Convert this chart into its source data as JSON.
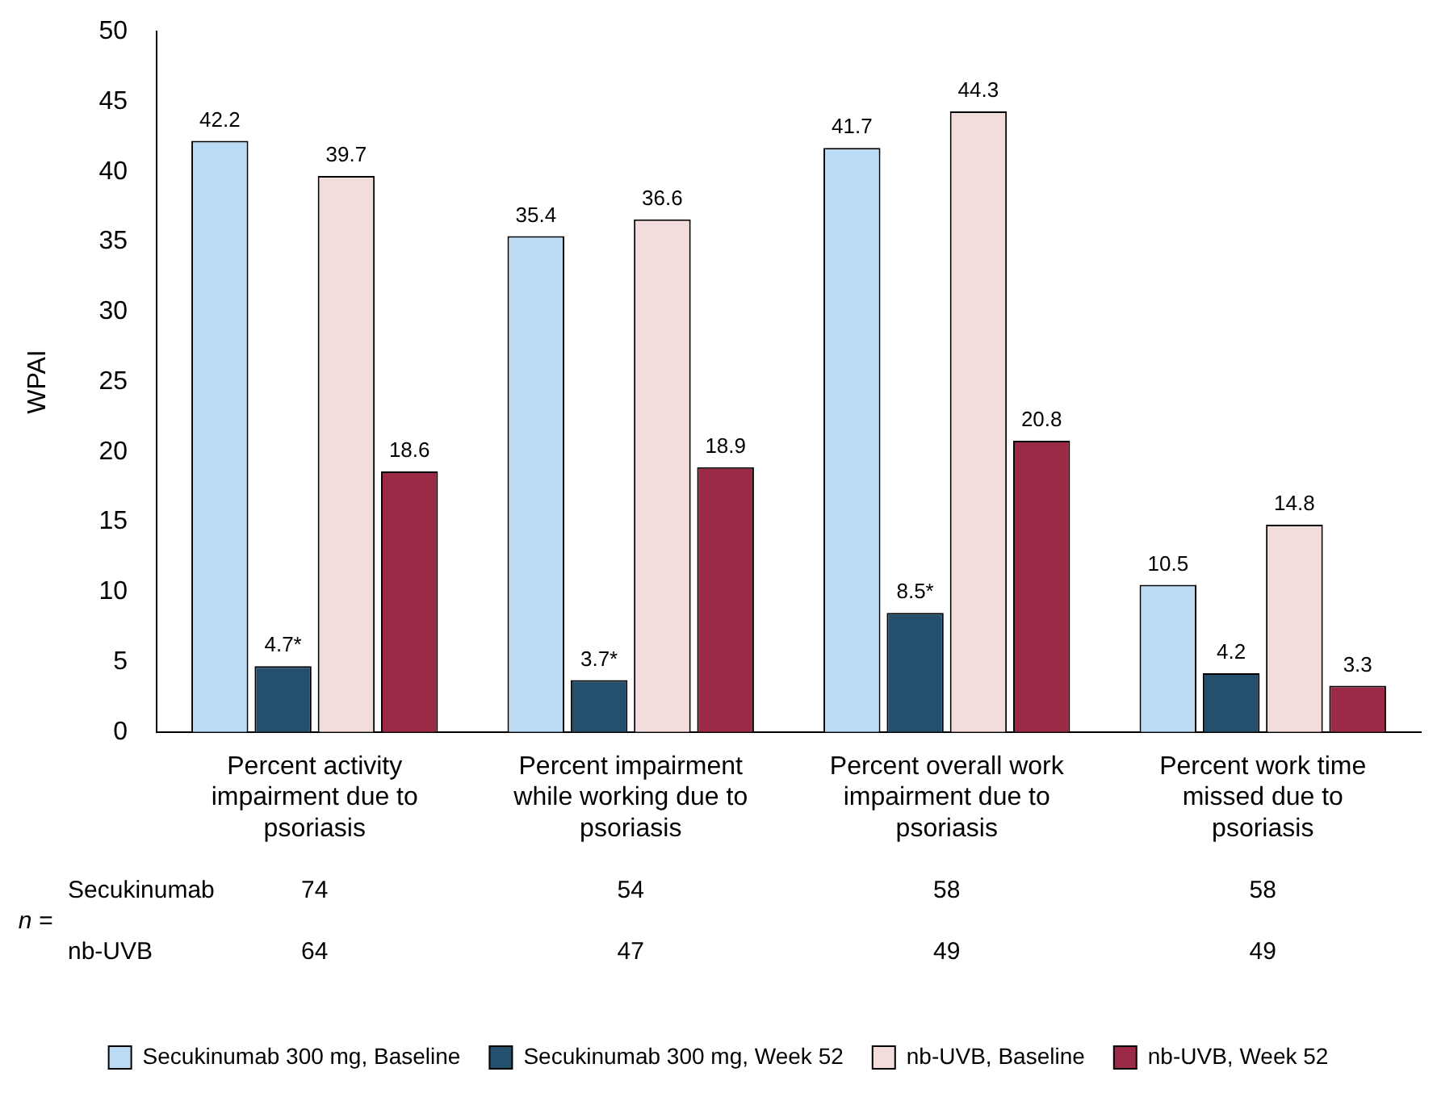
{
  "chart_data": {
    "type": "bar",
    "ylabel": "WPAI",
    "categories": [
      "Percent activity impairment due to psoriasis",
      "Percent impairment while working due to psoriasis",
      "Percent overall work impairment due to psoriasis",
      "Percent work time missed due to psoriasis"
    ],
    "series": [
      {
        "name": "Secukinumab 300 mg, Baseline",
        "color": "#bcdcf5",
        "values": [
          42.2,
          35.4,
          41.7,
          10.5
        ],
        "value_labels": [
          "42.2",
          "35.4",
          "41.7",
          "10.5"
        ]
      },
      {
        "name": "Secukinumab 300 mg, Week 52",
        "color": "#24506e",
        "values": [
          4.7,
          3.7,
          8.5,
          4.2
        ],
        "value_labels": [
          "4.7*",
          "3.7*",
          "8.5*",
          "4.2"
        ]
      },
      {
        "name": "nb-UVB, Baseline",
        "color": "#f2dcdc",
        "values": [
          39.7,
          36.6,
          44.3,
          14.8
        ],
        "value_labels": [
          "39.7",
          "36.6",
          "44.3",
          "14.8"
        ]
      },
      {
        "name": "nb-UVB, Week 52",
        "color": "#9b2a46",
        "values": [
          18.6,
          18.9,
          20.8,
          3.3
        ],
        "value_labels": [
          "18.6",
          "18.9",
          "20.8",
          "3.3"
        ]
      }
    ],
    "ylim": [
      0,
      50
    ],
    "yticks": [
      0,
      5,
      10,
      15,
      20,
      25,
      30,
      35,
      40,
      45,
      50
    ],
    "grid": false,
    "legend": "bottom",
    "annotations": [
      "n =",
      "Secukinumab",
      "74",
      "54",
      "58",
      "58",
      "nb-UVB",
      "64",
      "47",
      "49",
      "49"
    ]
  }
}
